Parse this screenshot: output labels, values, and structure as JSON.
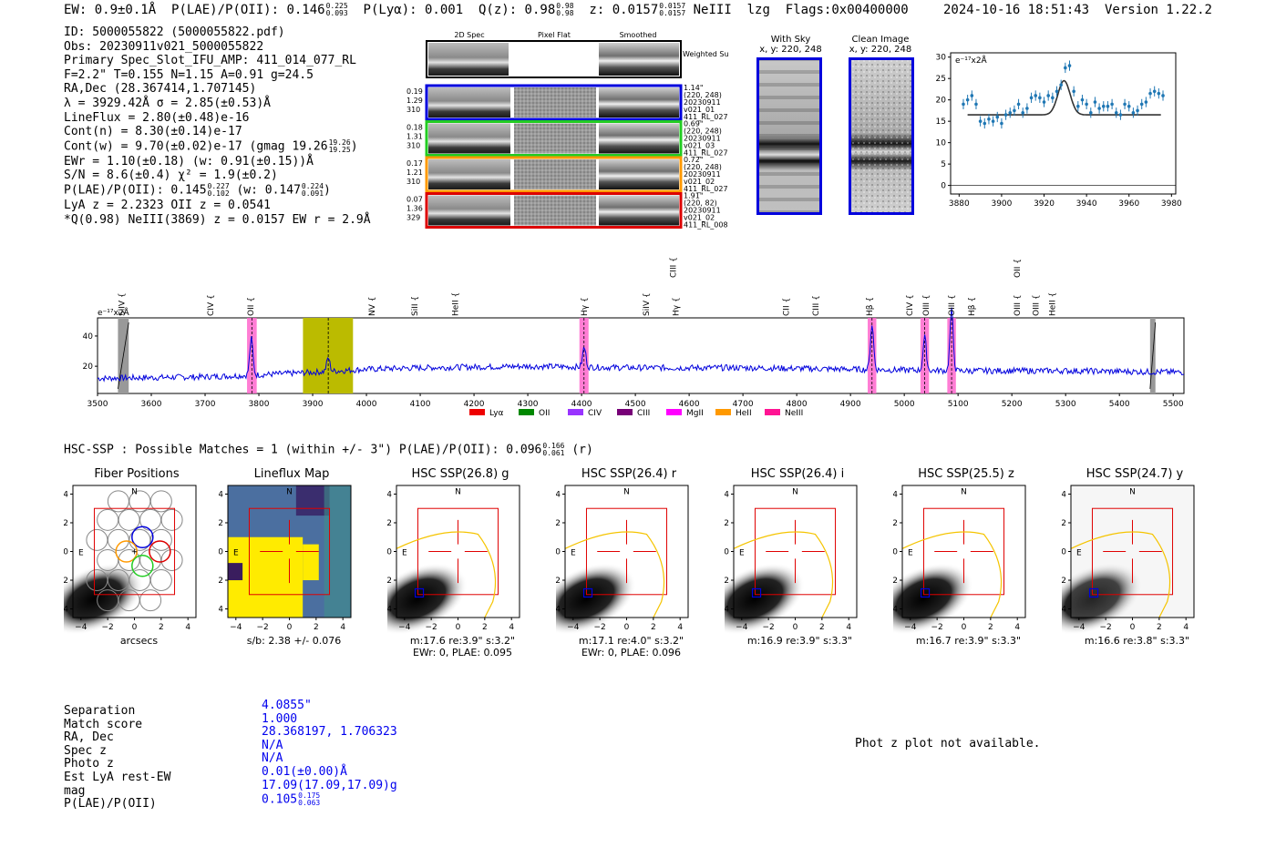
{
  "header": {
    "ew": "EW: 0.9±0.1Å",
    "plae_label": "P(LAE)/P(OII): 0.146",
    "plae_hi": "0.225",
    "plae_lo": "0.093",
    "plya": "P(Lyα): 0.001",
    "qz_label": "Q(z): 0.98",
    "qz_hi": "0.98",
    "qz_lo": "0.98",
    "z_label": "z: 0.0157",
    "z_hi": "0.0157",
    "z_lo": "0.0157",
    "line": "NeIII",
    "lzg": "lzg",
    "flags": "Flags:0x00400000",
    "timestamp": "2024-10-16 18:51:43",
    "version": "Version 1.22.2"
  },
  "info": {
    "id": "ID: 5000055822 (5000055822.pdf)",
    "obs": "Obs: 20230911v021_5000055822",
    "primary": "Primary Spec_Slot_IFU_AMP: 411_014_077_RL",
    "params": "F=2.2\"  T=0.155  N=1.15  A=0.91  g=24.5",
    "radec": "RA,Dec (28.367414,1.707145)",
    "lambda": "λ = 3929.42Å  σ = 2.85(±0.53)Å",
    "lineflux": "LineFlux = 2.80(±0.48)e-16",
    "contn": "Cont(n) = 8.30(±0.14)e-17",
    "contw": "Cont(w) = 9.70(±0.02)e-17 (gmag 19.26",
    "contw_hi": "19.26",
    "contw_lo": "19.25",
    "ewr": "EWr = 1.10(±0.18) (w: 0.91(±0.15))Å",
    "sn": "S/N = 8.6(±0.4)  χ² = 1.9(±0.2)",
    "plae": "P(LAE)/P(OII): 0.145",
    "plae_hi": "0.227",
    "plae_lo": "0.102",
    "plae_w": "(w: 0.147",
    "plae_w_hi": "0.224",
    "plae_w_lo": "0.091",
    "lya_z": "LyA z = 2.2323   OII z = 0.0541",
    "q_line": "*Q(0.98) NeIII(3869) z = 0.0157  EW r = 2.9Å"
  },
  "spec_panel": {
    "col_titles": [
      "2D Spec",
      "Pixel Flat",
      "Smoothed"
    ],
    "weighted_sum": "Weighted Sum",
    "rows": [
      {
        "left": [
          "0.19",
          "1.29",
          "310"
        ],
        "right": [
          "1.14\"",
          "(220, 248)",
          "20230911",
          "v021_01",
          "411_RL_027"
        ],
        "color": "#0000dd"
      },
      {
        "left": [
          "0.18",
          "1.31",
          "310"
        ],
        "right": [
          "0.69\"",
          "(220, 248)",
          "20230911",
          "v021_03",
          "411_RL_027"
        ],
        "color": "#22cc22"
      },
      {
        "left": [
          "0.17",
          "1.21",
          "310"
        ],
        "right": [
          "0.72\"",
          "(220, 248)",
          "20230911",
          "v021_02",
          "411_RL_027"
        ],
        "color": "#ff9900"
      },
      {
        "left": [
          "0.07",
          "1.36",
          "329"
        ],
        "right": [
          "1.91\"",
          "(220, 82)",
          "20230911",
          "v021_02",
          "411_RL_008"
        ],
        "color": "#dd0000"
      }
    ]
  },
  "cutouts_top": [
    {
      "title": "With Sky",
      "coords": "x, y: 220, 248"
    },
    {
      "title": "Clean Image",
      "coords": "x, y: 220, 248"
    }
  ],
  "fit_chart": {
    "ylabel": "e⁻¹⁷x2Å"
  },
  "spectrum_chart": {
    "ylabel": "e⁻¹⁷x2Å",
    "line_labels": [
      {
        "name": "SiIV",
        "x": 3545,
        "color": "#9933ff",
        "row": 0
      },
      {
        "name": "CIV",
        "x": 3710,
        "color": "#ff9900",
        "row": 0
      },
      {
        "name": "OII",
        "x": 3785,
        "color": "#ff00ff",
        "row": 0
      },
      {
        "name": "NV",
        "x": 4010,
        "color": "#ff0000",
        "row": 0
      },
      {
        "name": "SiII",
        "x": 4090,
        "color": "#ff0000",
        "row": 0
      },
      {
        "name": "HeII",
        "x": 4165,
        "color": "#9933ff",
        "row": 0
      },
      {
        "name": "Hγ",
        "x": 4405,
        "color": "#ff00ff",
        "row": 0
      },
      {
        "name": "SiIV",
        "x": 4520,
        "color": "#ff0000",
        "row": 0
      },
      {
        "name": "Hγ",
        "x": 4575,
        "color": "#008800",
        "row": 0
      },
      {
        "name": "CIII",
        "x": 4570,
        "color": "#ff9900",
        "row": 1
      },
      {
        "name": "CII",
        "x": 4780,
        "color": "#9933ff",
        "row": 0
      },
      {
        "name": "CIII",
        "x": 4835,
        "color": "#9933ff",
        "row": 0
      },
      {
        "name": "Hβ",
        "x": 4935,
        "color": "#ff00ff",
        "row": 0
      },
      {
        "name": "CIV",
        "x": 5010,
        "color": "#ff0000",
        "row": 0
      },
      {
        "name": "OIII",
        "x": 5040,
        "color": "#ff00ff",
        "row": 0
      },
      {
        "name": "OIII",
        "x": 5088,
        "color": "#ff00ff",
        "row": 0
      },
      {
        "name": "Hβ",
        "x": 5125,
        "color": "#008800",
        "row": 0
      },
      {
        "name": "OII",
        "x": 5210,
        "color": "#ff00ff",
        "row": 1
      },
      {
        "name": "OIII",
        "x": 5210,
        "color": "#008800",
        "row": 0
      },
      {
        "name": "OIII",
        "x": 5245,
        "color": "#008800",
        "row": 0
      },
      {
        "name": "HeII",
        "x": 5275,
        "color": "#ff0000",
        "row": 0
      }
    ],
    "legend": [
      {
        "name": "Lyα",
        "color": "#ee0000"
      },
      {
        "name": "OII",
        "color": "#008800"
      },
      {
        "name": "CIV",
        "color": "#9933ff"
      },
      {
        "name": "CIII",
        "color": "#770077"
      },
      {
        "name": "MgII",
        "color": "#ff00ff"
      },
      {
        "name": "HeII",
        "color": "#ff9900"
      },
      {
        "name": "NeIII",
        "color": "#ff1493"
      }
    ]
  },
  "hsc": {
    "title_main": "HSC-SSP : Possible Matches = 1 (within +/- 3\")  P(LAE)/P(OII): 0.096",
    "title_hi": "0.166",
    "title_lo": "0.061",
    "title_band": "(r)",
    "panels": [
      {
        "title": "Fiber Positions",
        "cap1": "arcsecs",
        "cap2": ""
      },
      {
        "title": "Lineflux Map",
        "cap1": "s/b: 2.38 +/- 0.076",
        "cap2": ""
      },
      {
        "title": "HSC SSP(26.8) g",
        "cap1": "m:17.6  re:3.9\"  s:3.2\"",
        "cap2": "EWr: 0, PLAE: 0.095"
      },
      {
        "title": "HSC SSP(26.4) r",
        "cap1": "m:17.1  re:4.0\"  s:3.2\"",
        "cap2": "EWr: 0, PLAE: 0.096"
      },
      {
        "title": "HSC SSP(26.4) i",
        "cap1": "m:16.9  re:3.9\"  s:3.3\"",
        "cap2": ""
      },
      {
        "title": "HSC SSP(25.5) z",
        "cap1": "m:16.7  re:3.9\"  s:3.3\"",
        "cap2": ""
      },
      {
        "title": "HSC SSP(24.7) y",
        "cap1": "m:16.6  re:3.8\"  s:3.3\"",
        "cap2": ""
      }
    ],
    "compass_n": "N",
    "compass_e": "E"
  },
  "match_table": {
    "labels": [
      "Separation",
      "Match score",
      "RA, Dec",
      "Spec z",
      "Photo z",
      "Est LyA rest-EW",
      "mag",
      "P(LAE)/P(OII)"
    ],
    "values": [
      "4.0855\"",
      "1.000",
      "28.368197, 1.706323",
      "N/A",
      "N/A",
      "0.01(±0.00)Å",
      "17.09(17.09,17.09)g",
      "0.105"
    ],
    "plae_hi": "0.175",
    "plae_lo": "0.063"
  },
  "phot_z_msg": "Phot z plot not available.",
  "chart_data": [
    {
      "type": "scatter",
      "title": "Emission line fit",
      "xlabel": "",
      "ylabel": "e⁻¹⁷x2Å",
      "xlim": [
        3876,
        3982
      ],
      "ylim": [
        -2,
        31
      ],
      "xticks": [
        3880,
        3900,
        3920,
        3940,
        3960,
        3980
      ],
      "yticks": [
        0,
        5,
        10,
        15,
        20,
        25,
        30
      ],
      "series": [
        {
          "name": "data",
          "x": [
            3882,
            3884,
            3886,
            3888,
            3890,
            3892,
            3894,
            3896,
            3898,
            3900,
            3902,
            3904,
            3906,
            3908,
            3910,
            3912,
            3914,
            3916,
            3918,
            3920,
            3922,
            3924,
            3926,
            3928,
            3930,
            3932,
            3934,
            3936,
            3938,
            3940,
            3942,
            3944,
            3946,
            3948,
            3950,
            3952,
            3954,
            3956,
            3958,
            3960,
            3962,
            3964,
            3966,
            3968,
            3970,
            3972,
            3974,
            3976
          ],
          "y": [
            19,
            20,
            21,
            19,
            15,
            14.5,
            15.5,
            15,
            16,
            14.5,
            16.5,
            17,
            17.5,
            19,
            17,
            18,
            20.5,
            21,
            20.5,
            19.5,
            21,
            20.5,
            22,
            23.5,
            27.5,
            28,
            22,
            18.5,
            20,
            19,
            17,
            19.5,
            18,
            18.5,
            18.5,
            19,
            17,
            16.5,
            19,
            18.5,
            17,
            17.5,
            19,
            19.5,
            21.5,
            22,
            21.5,
            21
          ]
        },
        {
          "name": "fit",
          "type": "line",
          "baseline": 16.5,
          "amp": 8.0,
          "center": 3929.4,
          "sigma": 2.85,
          "x_range": [
            3884,
            3975
          ]
        }
      ]
    },
    {
      "type": "line",
      "title": "Full spectrum",
      "xlabel": "",
      "ylabel": "e⁻¹⁷x2Å",
      "xlim": [
        3500,
        5520
      ],
      "ylim": [
        2,
        52
      ],
      "xticks": [
        3500,
        3600,
        3700,
        3800,
        3900,
        4000,
        4100,
        4200,
        4300,
        4400,
        4500,
        4600,
        4700,
        4800,
        4900,
        5000,
        5100,
        5200,
        5300,
        5400,
        5500
      ],
      "yticks": [
        20,
        40
      ],
      "continuum": [
        [
          3500,
          12
        ],
        [
          3700,
          13
        ],
        [
          3780,
          14
        ],
        [
          3900,
          16
        ],
        [
          4000,
          18
        ],
        [
          4100,
          19
        ],
        [
          4300,
          20
        ],
        [
          4500,
          19
        ],
        [
          4700,
          19
        ],
        [
          4900,
          18
        ],
        [
          5100,
          17
        ],
        [
          5300,
          17
        ],
        [
          5520,
          16
        ]
      ],
      "peaks": [
        {
          "x": 3786,
          "height": 24,
          "width": 3
        },
        {
          "x": 3929,
          "height": 9,
          "width": 3
        },
        {
          "x": 4405,
          "height": 13,
          "width": 3
        },
        {
          "x": 4940,
          "height": 30,
          "width": 3
        },
        {
          "x": 5038,
          "height": 22,
          "width": 3
        },
        {
          "x": 5088,
          "height": 40,
          "width": 3
        }
      ],
      "highlight_bands": [
        {
          "from": 3778,
          "to": 3796,
          "color": "#ff66cc"
        },
        {
          "from": 4396,
          "to": 4413,
          "color": "#ff66cc"
        },
        {
          "from": 4932,
          "to": 4948,
          "color": "#ff66cc"
        },
        {
          "from": 5030,
          "to": 5046,
          "color": "#ff66cc"
        },
        {
          "from": 5080,
          "to": 5096,
          "color": "#ff66cc"
        }
      ],
      "fit_window": {
        "from": 3882,
        "to": 3975,
        "color": "#bbbb00",
        "center": 3929
      },
      "masked": [
        {
          "from": 3538,
          "to": 3558
        },
        {
          "from": 5457,
          "to": 5467
        }
      ]
    }
  ]
}
